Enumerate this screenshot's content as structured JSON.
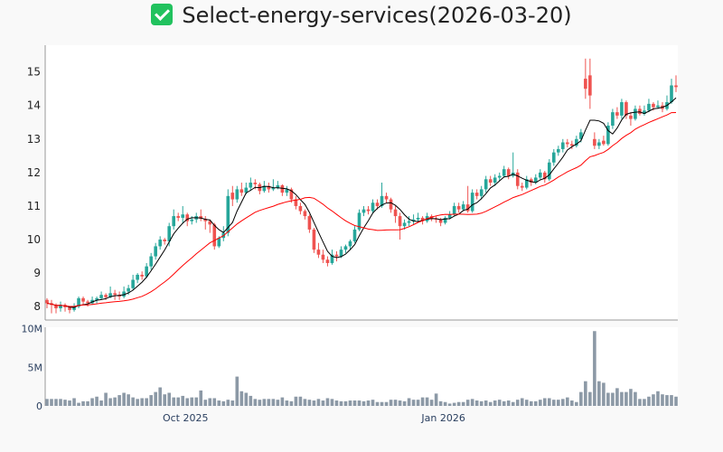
{
  "title": "Select-energy-services(2026-03-20)",
  "title_icon": "check-box-icon",
  "colors": {
    "up": "#26a69a",
    "down": "#ef5350",
    "ma_short": "#000000",
    "ma_long": "#ff0000",
    "volume": "#8c99a6",
    "title_icon": "#21c25e"
  },
  "chart_data": {
    "type": "candlestick",
    "title": "Select-energy-services(2026-03-20)",
    "price_axis": {
      "ylim": [
        7.6,
        15.8
      ],
      "ticks": [
        8,
        9,
        10,
        11,
        12,
        13,
        14,
        15
      ],
      "tick_labels": [
        "8",
        "9",
        "10",
        "11",
        "12",
        "13",
        "14",
        "15"
      ]
    },
    "volume_axis": {
      "ylim": [
        0,
        10.2
      ],
      "unit": "M",
      "ticks": [
        0,
        5,
        10
      ],
      "tick_labels": [
        "0",
        "5M",
        "10M"
      ]
    },
    "x_ticks": [
      {
        "index": 30.6,
        "label": "Oct 2025"
      },
      {
        "index": 87.6,
        "label": "Jan 2026"
      }
    ],
    "moving_averages": [
      {
        "name": "MA5",
        "window": 5,
        "color": "#000000"
      },
      {
        "name": "MA20",
        "window": 20,
        "color": "#ff0000"
      }
    ],
    "columns": [
      "open",
      "high",
      "low",
      "close",
      "volume_M"
    ],
    "bars": [
      [
        8.2,
        8.25,
        7.95,
        8.1,
        0.9
      ],
      [
        8.1,
        8.2,
        7.8,
        8.05,
        0.9
      ],
      [
        8.05,
        8.1,
        7.8,
        7.95,
        0.9
      ],
      [
        7.95,
        8.15,
        7.85,
        8.05,
        0.9
      ],
      [
        8.05,
        8.1,
        7.85,
        7.98,
        0.8
      ],
      [
        7.98,
        8.0,
        7.8,
        7.9,
        0.7
      ],
      [
        7.9,
        8.1,
        7.85,
        8.0,
        1.0
      ],
      [
        8.0,
        8.3,
        7.95,
        8.25,
        0.4
      ],
      [
        8.25,
        8.3,
        8.05,
        8.15,
        0.6
      ],
      [
        8.15,
        8.2,
        8.0,
        8.1,
        0.6
      ],
      [
        8.1,
        8.3,
        8.05,
        8.2,
        1.0
      ],
      [
        8.2,
        8.3,
        8.1,
        8.25,
        1.2
      ],
      [
        8.25,
        8.45,
        8.2,
        8.35,
        0.7
      ],
      [
        8.35,
        8.4,
        8.2,
        8.28,
        1.7
      ],
      [
        8.28,
        8.6,
        8.25,
        8.4,
        1.0
      ],
      [
        8.4,
        8.5,
        8.2,
        8.35,
        1.1
      ],
      [
        8.35,
        8.45,
        8.2,
        8.3,
        1.4
      ],
      [
        8.3,
        8.6,
        8.25,
        8.45,
        1.7
      ],
      [
        8.45,
        8.65,
        8.35,
        8.55,
        1.5
      ],
      [
        8.55,
        8.95,
        8.5,
        8.8,
        1.1
      ],
      [
        8.8,
        9.0,
        8.7,
        8.95,
        0.9
      ],
      [
        8.95,
        9.05,
        8.8,
        8.9,
        1.0
      ],
      [
        8.9,
        9.3,
        8.85,
        9.2,
        1.0
      ],
      [
        9.2,
        9.6,
        9.1,
        9.5,
        1.4
      ],
      [
        9.5,
        9.9,
        9.4,
        9.8,
        1.8
      ],
      [
        9.8,
        10.1,
        9.7,
        10.0,
        2.4
      ],
      [
        10.0,
        10.05,
        9.85,
        9.95,
        1.5
      ],
      [
        9.95,
        10.5,
        9.8,
        10.4,
        1.7
      ],
      [
        10.4,
        10.9,
        10.3,
        10.7,
        1.1
      ],
      [
        10.7,
        10.8,
        10.55,
        10.65,
        1.1
      ],
      [
        10.65,
        11.0,
        10.5,
        10.75,
        1.3
      ],
      [
        10.75,
        10.8,
        10.4,
        10.55,
        1.0
      ],
      [
        10.55,
        10.7,
        10.45,
        10.6,
        1.1
      ],
      [
        10.6,
        10.8,
        10.5,
        10.7,
        1.1
      ],
      [
        10.7,
        10.9,
        10.55,
        10.62,
        2.0
      ],
      [
        10.62,
        10.7,
        10.3,
        10.55,
        0.8
      ],
      [
        10.55,
        10.6,
        10.2,
        10.45,
        1.0
      ],
      [
        10.45,
        10.5,
        9.7,
        9.8,
        1.0
      ],
      [
        9.8,
        10.1,
        9.75,
        10.05,
        0.7
      ],
      [
        10.05,
        10.4,
        9.95,
        10.2,
        0.6
      ],
      [
        10.2,
        11.5,
        10.1,
        11.3,
        0.8
      ],
      [
        11.4,
        11.6,
        11.0,
        11.2,
        0.7
      ],
      [
        11.2,
        11.6,
        11.1,
        11.5,
        3.8
      ],
      [
        11.5,
        11.7,
        11.3,
        11.4,
        1.9
      ],
      [
        11.4,
        11.7,
        11.35,
        11.55,
        1.7
      ],
      [
        11.55,
        11.85,
        11.45,
        11.7,
        1.3
      ],
      [
        11.7,
        11.8,
        11.5,
        11.65,
        0.9
      ],
      [
        11.65,
        11.7,
        11.35,
        11.45,
        0.8
      ],
      [
        11.45,
        11.75,
        11.4,
        11.6,
        0.9
      ],
      [
        11.6,
        11.7,
        11.4,
        11.5,
        0.9
      ],
      [
        11.5,
        11.8,
        11.45,
        11.55,
        0.9
      ],
      [
        11.55,
        11.75,
        11.5,
        11.62,
        0.8
      ],
      [
        11.62,
        11.65,
        11.3,
        11.4,
        1.1
      ],
      [
        11.4,
        11.6,
        11.3,
        11.5,
        0.7
      ],
      [
        11.5,
        11.55,
        11.1,
        11.2,
        0.6
      ],
      [
        11.2,
        11.3,
        10.9,
        11.0,
        1.2
      ],
      [
        11.0,
        11.1,
        10.75,
        10.85,
        1.2
      ],
      [
        10.85,
        10.9,
        10.6,
        10.7,
        0.9
      ],
      [
        10.7,
        10.75,
        10.2,
        10.3,
        0.8
      ],
      [
        10.3,
        10.35,
        9.6,
        9.7,
        0.7
      ],
      [
        9.7,
        9.9,
        9.45,
        9.55,
        0.9
      ],
      [
        9.55,
        9.7,
        9.3,
        9.4,
        0.7
      ],
      [
        9.4,
        9.5,
        9.2,
        9.3,
        1.0
      ],
      [
        9.3,
        9.7,
        9.25,
        9.55,
        0.9
      ],
      [
        9.55,
        9.65,
        9.35,
        9.5,
        0.7
      ],
      [
        9.5,
        9.8,
        9.45,
        9.7,
        0.6
      ],
      [
        9.7,
        9.85,
        9.6,
        9.8,
        0.6
      ],
      [
        9.8,
        10.0,
        9.7,
        9.95,
        0.7
      ],
      [
        9.95,
        10.4,
        9.9,
        10.3,
        0.7
      ],
      [
        10.3,
        10.9,
        10.25,
        10.8,
        0.7
      ],
      [
        10.8,
        11.0,
        10.7,
        10.9,
        0.6
      ],
      [
        10.9,
        11.0,
        10.75,
        10.85,
        0.7
      ],
      [
        10.85,
        11.2,
        10.8,
        11.1,
        0.8
      ],
      [
        11.1,
        11.2,
        10.9,
        11.0,
        0.5
      ],
      [
        11.0,
        11.7,
        10.95,
        11.3,
        0.5
      ],
      [
        11.3,
        11.4,
        11.1,
        11.2,
        0.5
      ],
      [
        11.2,
        11.25,
        10.8,
        10.9,
        0.8
      ],
      [
        10.9,
        11.0,
        10.5,
        10.7,
        0.8
      ],
      [
        10.7,
        10.8,
        10.0,
        10.4,
        0.7
      ],
      [
        10.4,
        10.6,
        10.3,
        10.5,
        0.6
      ],
      [
        10.5,
        10.7,
        10.4,
        10.55,
        1.0
      ],
      [
        10.55,
        10.75,
        10.45,
        10.6,
        0.8
      ],
      [
        10.6,
        10.8,
        10.5,
        10.65,
        0.8
      ],
      [
        10.65,
        10.7,
        10.45,
        10.55,
        1.1
      ],
      [
        10.55,
        10.8,
        10.5,
        10.7,
        1.1
      ],
      [
        10.7,
        10.75,
        10.55,
        10.62,
        0.8
      ],
      [
        10.62,
        10.7,
        10.5,
        10.6,
        1.6
      ],
      [
        10.6,
        10.65,
        10.4,
        10.5,
        0.6
      ],
      [
        10.5,
        10.7,
        10.45,
        10.65,
        0.5
      ],
      [
        10.65,
        10.85,
        10.6,
        10.75,
        0.3
      ],
      [
        10.75,
        11.1,
        10.7,
        11.0,
        0.4
      ],
      [
        11.0,
        11.1,
        10.8,
        10.9,
        0.5
      ],
      [
        10.9,
        11.15,
        10.85,
        11.05,
        0.5
      ],
      [
        11.05,
        11.6,
        10.8,
        10.85,
        0.8
      ],
      [
        10.85,
        11.5,
        10.8,
        11.4,
        0.9
      ],
      [
        11.4,
        11.5,
        11.2,
        11.3,
        0.7
      ],
      [
        11.3,
        11.6,
        11.2,
        11.5,
        0.6
      ],
      [
        11.5,
        11.9,
        11.4,
        11.8,
        0.7
      ],
      [
        11.8,
        11.9,
        11.6,
        11.7,
        0.5
      ],
      [
        11.7,
        11.95,
        11.6,
        11.85,
        0.7
      ],
      [
        11.85,
        12.0,
        11.75,
        11.9,
        0.8
      ],
      [
        11.9,
        12.2,
        11.85,
        12.1,
        0.6
      ],
      [
        12.1,
        12.15,
        11.8,
        11.9,
        0.7
      ],
      [
        11.9,
        12.6,
        11.85,
        12.0,
        0.5
      ],
      [
        12.0,
        12.1,
        11.5,
        11.6,
        0.8
      ],
      [
        11.6,
        11.7,
        11.45,
        11.55,
        1.0
      ],
      [
        11.55,
        11.9,
        11.5,
        11.8,
        0.8
      ],
      [
        11.8,
        11.85,
        11.6,
        11.7,
        0.6
      ],
      [
        11.7,
        11.95,
        11.65,
        11.85,
        0.6
      ],
      [
        11.85,
        12.1,
        11.8,
        12.0,
        0.8
      ],
      [
        12.0,
        12.05,
        11.7,
        11.8,
        1.0
      ],
      [
        11.8,
        12.4,
        11.75,
        12.3,
        1.0
      ],
      [
        12.3,
        12.7,
        12.2,
        12.6,
        0.8
      ],
      [
        12.6,
        12.8,
        12.5,
        12.7,
        0.8
      ],
      [
        12.7,
        13.0,
        12.6,
        12.9,
        0.9
      ],
      [
        12.9,
        13.0,
        12.75,
        12.85,
        1.1
      ],
      [
        12.85,
        12.95,
        12.7,
        12.8,
        0.7
      ],
      [
        12.8,
        13.1,
        12.75,
        13.0,
        0.5
      ],
      [
        13.0,
        13.3,
        12.9,
        13.2,
        1.8
      ],
      [
        14.8,
        15.4,
        14.2,
        14.5,
        3.2
      ],
      [
        14.9,
        15.4,
        13.9,
        14.3,
        1.8
      ],
      [
        13.0,
        13.2,
        12.7,
        12.8,
        9.7
      ],
      [
        12.8,
        13.0,
        12.7,
        12.9,
        3.2
      ],
      [
        12.95,
        13.1,
        12.8,
        12.85,
        3.0
      ],
      [
        12.85,
        13.5,
        12.8,
        13.4,
        1.7
      ],
      [
        13.4,
        13.9,
        13.3,
        13.8,
        1.7
      ],
      [
        13.8,
        13.95,
        13.6,
        13.7,
        2.3
      ],
      [
        13.7,
        14.2,
        13.6,
        14.1,
        1.8
      ],
      [
        14.1,
        14.15,
        13.6,
        13.7,
        1.8
      ],
      [
        13.7,
        13.8,
        13.4,
        13.6,
        2.2
      ],
      [
        13.6,
        14.0,
        13.55,
        13.9,
        1.8
      ],
      [
        13.9,
        14.0,
        13.7,
        13.75,
        0.9
      ],
      [
        13.75,
        14.0,
        13.7,
        13.85,
        0.9
      ],
      [
        13.85,
        14.2,
        13.8,
        14.05,
        1.2
      ],
      [
        14.05,
        14.1,
        13.85,
        13.95,
        1.5
      ],
      [
        13.95,
        14.15,
        13.9,
        14.0,
        1.9
      ],
      [
        14.0,
        14.1,
        13.8,
        13.9,
        1.5
      ],
      [
        13.9,
        14.3,
        13.85,
        14.1,
        1.4
      ],
      [
        14.1,
        14.8,
        14.05,
        14.6,
        1.4
      ],
      [
        14.6,
        14.9,
        14.4,
        14.55,
        1.2
      ]
    ]
  }
}
